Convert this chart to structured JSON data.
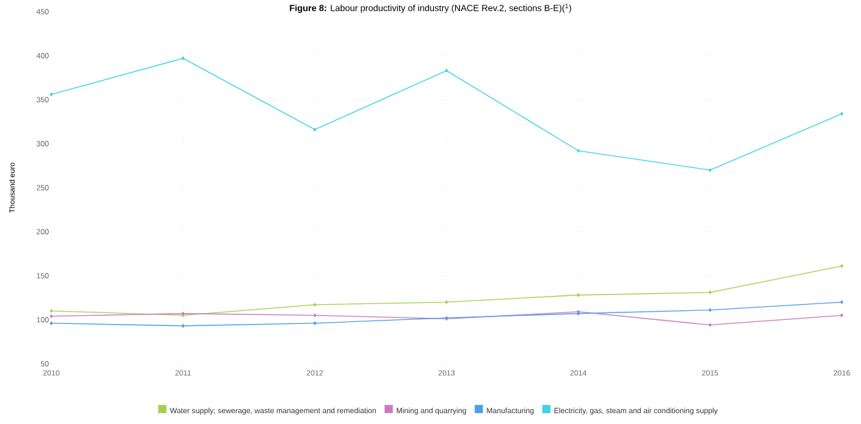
{
  "chart_data": {
    "type": "line",
    "title": "**Figure 8:** Labour productivity of industry (NACE Rev.2, sections B-E)($^{1}$)",
    "ylabel": "Thousand euro",
    "x": [
      2010,
      2011,
      2012,
      2013,
      2014,
      2015,
      2016
    ],
    "series": [
      {
        "name": "Water supply; sewerage, waste management and remediation",
        "color": "#a8cf4c",
        "values": [
          110,
          105,
          117,
          120,
          128,
          131,
          161
        ]
      },
      {
        "name": "Mining and quarrying",
        "color": "#cc7ac0",
        "values": [
          104,
          107,
          105,
          101,
          109,
          94,
          105
        ]
      },
      {
        "name": "Manufacturing",
        "color": "#4f9ee8",
        "values": [
          96,
          93,
          96,
          102,
          107,
          111,
          120
        ]
      },
      {
        "name": "Electricity, gas, steam and air conditioning supply",
        "color": "#3dd3e8",
        "values": [
          356,
          397,
          316,
          383,
          292,
          270,
          334
        ]
      }
    ],
    "xlim": [
      2010,
      2016
    ],
    "xticks": [
      2010,
      2011,
      2012,
      2013,
      2014,
      2015,
      2016
    ],
    "ylim": [
      50,
      450
    ],
    "yticks": [
      50,
      100,
      150,
      200,
      250,
      300,
      350,
      400,
      450
    ],
    "grid": true,
    "legend": "bottom",
    "marker": "diamond",
    "line_style": "solid"
  }
}
